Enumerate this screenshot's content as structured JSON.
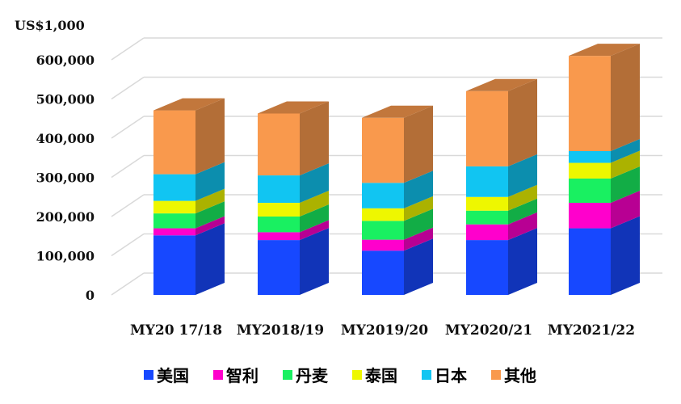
{
  "chart_data": {
    "type": "bar",
    "stacked": true,
    "three_d": true,
    "unit_label": "US$1,000",
    "categories": [
      "MY20 17/18",
      "MY2018/19",
      "MY2019/20",
      "MY2020/21",
      "MY2021/22"
    ],
    "y_ticks": [
      "0",
      "100,000",
      "200,000",
      "300,000",
      "400,000",
      "500,000",
      "600,000"
    ],
    "ylim": [
      0,
      620000
    ],
    "grid": true,
    "legend_position": "bottom",
    "series": [
      {
        "name": "美国",
        "color": "#1748ff",
        "values": [
          152000,
          140000,
          113000,
          140000,
          170000
        ]
      },
      {
        "name": "智利",
        "color": "#ff00cc",
        "values": [
          18000,
          20000,
          28000,
          40000,
          65000
        ]
      },
      {
        "name": "丹麦",
        "color": "#19f061",
        "values": [
          38000,
          40000,
          48000,
          35000,
          62000
        ]
      },
      {
        "name": "泰国",
        "color": "#eef700",
        "values": [
          32000,
          35000,
          32000,
          35000,
          40000
        ]
      },
      {
        "name": "日本",
        "color": "#11c5f2",
        "values": [
          68000,
          70000,
          65000,
          78000,
          30000
        ]
      },
      {
        "name": "其他",
        "color": "#f9994d",
        "values": [
          163000,
          158000,
          166000,
          192000,
          243000
        ]
      }
    ]
  }
}
